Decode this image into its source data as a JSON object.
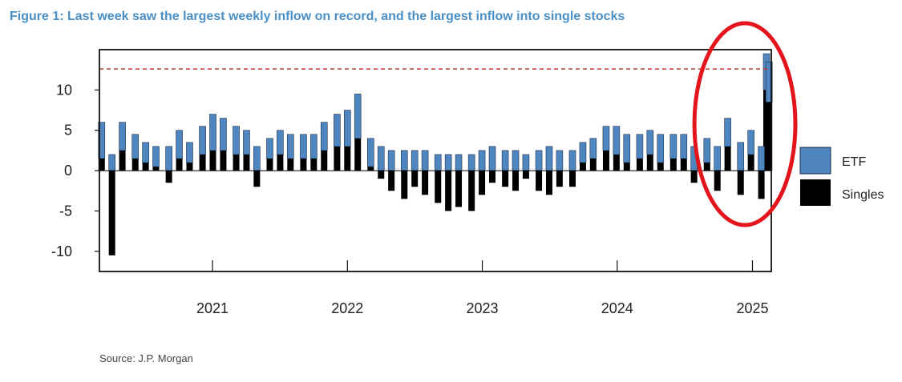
{
  "chart_data": {
    "type": "bar",
    "stacked": true,
    "title": "Figure 1: Last week saw the largest weekly inflow on record, and the largest inflow into single stocks",
    "source": "Source: J.P. Morgan",
    "xlabel": "",
    "ylabel": "",
    "ylim": [
      -12.5,
      15
    ],
    "xlim": [
      "2020-03-01",
      "2025-02-21"
    ],
    "y_ticks": [
      -10,
      -5,
      0,
      5,
      10
    ],
    "y_tick_labels": [
      "-10",
      "-5",
      "0",
      "5",
      "10"
    ],
    "x_ticks": [
      "2021-01-01",
      "2022-01-01",
      "2023-01-01",
      "2024-01-01",
      "2025-01-01"
    ],
    "x_tick_labels": [
      "2021",
      "2022",
      "2023",
      "2024",
      "2025"
    ],
    "reference_line": {
      "value": 12.6,
      "style": "dashed",
      "color": "#c0392b"
    },
    "grid": false,
    "legend": {
      "placement": "right",
      "entries": [
        "ETF",
        "Singles"
      ]
    },
    "colors": {
      "ETF": "#4f86c0",
      "Singles": "#000000"
    },
    "highlight": {
      "shape": "ellipse",
      "color": "#e3141b",
      "period": [
        "2024-10-01",
        "2025-02-21"
      ]
    },
    "series": [
      {
        "name": "ETF",
        "x": [
          "2020-03-07",
          "2020-04-04",
          "2020-05-02",
          "2020-06-06",
          "2020-07-04",
          "2020-08-01",
          "2020-09-05",
          "2020-10-03",
          "2020-10-31",
          "2020-12-05",
          "2021-01-02",
          "2021-01-30",
          "2021-03-06",
          "2021-04-03",
          "2021-05-01",
          "2021-06-05",
          "2021-07-03",
          "2021-07-31",
          "2021-09-04",
          "2021-10-02",
          "2021-10-30",
          "2021-12-04",
          "2022-01-01",
          "2022-01-29",
          "2022-03-05",
          "2022-04-02",
          "2022-04-30",
          "2022-06-04",
          "2022-07-02",
          "2022-07-30",
          "2022-09-03",
          "2022-10-01",
          "2022-10-29",
          "2022-12-03",
          "2022-12-31",
          "2023-01-28",
          "2023-03-04",
          "2023-04-01",
          "2023-04-29",
          "2023-06-03",
          "2023-07-01",
          "2023-07-29",
          "2023-09-02",
          "2023-09-30",
          "2023-10-28",
          "2023-12-02",
          "2023-12-30",
          "2024-01-27",
          "2024-03-02",
          "2024-03-30",
          "2024-04-27",
          "2024-06-01",
          "2024-06-29",
          "2024-07-27",
          "2024-08-31",
          "2024-09-28",
          "2024-10-26",
          "2024-11-30",
          "2024-12-28",
          "2025-01-25",
          "2025-02-08",
          "2025-02-15"
        ],
        "values": [
          4.5,
          2.0,
          3.5,
          3.0,
          2.5,
          2.5,
          3.0,
          3.5,
          2.5,
          3.5,
          4.5,
          4.0,
          3.5,
          3.0,
          3.0,
          2.5,
          3.0,
          3.0,
          3.0,
          3.0,
          3.5,
          4.0,
          4.5,
          5.5,
          3.5,
          3.0,
          2.5,
          2.5,
          2.5,
          2.5,
          2.0,
          2.0,
          2.0,
          2.0,
          2.5,
          3.0,
          2.5,
          2.5,
          2.0,
          2.5,
          3.0,
          2.5,
          2.5,
          2.5,
          2.5,
          3.0,
          3.5,
          3.5,
          3.0,
          3.0,
          3.5,
          3.0,
          3.0,
          3.0,
          3.0,
          3.0,
          3.5,
          3.5,
          3.0,
          3.0,
          4.5,
          5.0
        ]
      },
      {
        "name": "Singles",
        "x": [
          "2020-03-07",
          "2020-04-04",
          "2020-05-02",
          "2020-06-06",
          "2020-07-04",
          "2020-08-01",
          "2020-09-05",
          "2020-10-03",
          "2020-10-31",
          "2020-12-05",
          "2021-01-02",
          "2021-01-30",
          "2021-03-06",
          "2021-04-03",
          "2021-05-01",
          "2021-06-05",
          "2021-07-03",
          "2021-07-31",
          "2021-09-04",
          "2021-10-02",
          "2021-10-30",
          "2021-12-04",
          "2022-01-01",
          "2022-01-29",
          "2022-03-05",
          "2022-04-02",
          "2022-04-30",
          "2022-06-04",
          "2022-07-02",
          "2022-07-30",
          "2022-09-03",
          "2022-10-01",
          "2022-10-29",
          "2022-12-03",
          "2022-12-31",
          "2023-01-28",
          "2023-03-04",
          "2023-04-01",
          "2023-04-29",
          "2023-06-03",
          "2023-07-01",
          "2023-07-29",
          "2023-09-02",
          "2023-09-30",
          "2023-10-28",
          "2023-12-02",
          "2023-12-30",
          "2024-01-27",
          "2024-03-02",
          "2024-03-30",
          "2024-04-27",
          "2024-06-01",
          "2024-06-29",
          "2024-07-27",
          "2024-08-31",
          "2024-09-28",
          "2024-10-26",
          "2024-11-30",
          "2024-12-28",
          "2025-01-25",
          "2025-02-08",
          "2025-02-15"
        ],
        "values": [
          1.5,
          -10.5,
          2.5,
          1.5,
          1.0,
          0.5,
          -1.5,
          1.5,
          1.0,
          2.0,
          2.5,
          2.5,
          2.0,
          2.0,
          -2.0,
          1.5,
          2.0,
          1.5,
          1.5,
          1.5,
          2.5,
          3.0,
          3.0,
          4.0,
          0.5,
          -1.0,
          -2.5,
          -3.5,
          -2.0,
          -3.0,
          -4.0,
          -5.0,
          -4.5,
          -5.0,
          -3.0,
          -1.5,
          -2.0,
          -2.5,
          -1.0,
          -2.5,
          -3.0,
          -2.0,
          -2.0,
          1.0,
          1.5,
          2.5,
          2.0,
          1.0,
          1.5,
          2.0,
          1.0,
          1.5,
          1.5,
          -1.5,
          1.0,
          -2.5,
          3.0,
          -3.0,
          2.0,
          -3.5,
          10.0,
          8.5
        ]
      }
    ]
  }
}
